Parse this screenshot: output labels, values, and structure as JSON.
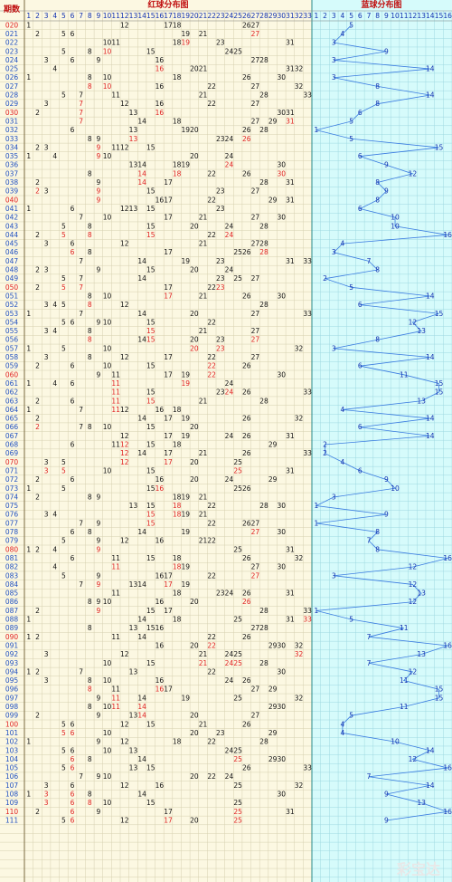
{
  "chart_data": {
    "type": "distribution",
    "period_header": "期数",
    "red_title": "红球分布图",
    "blue_title": "蓝球分布图",
    "watermark": "彩宝达",
    "red_columns": [
      1,
      2,
      3,
      4,
      5,
      6,
      7,
      8,
      9,
      10,
      11,
      12,
      13,
      14,
      15,
      16,
      17,
      18,
      19,
      20,
      21,
      22,
      23,
      24,
      25,
      26,
      27,
      28,
      29,
      30,
      31,
      32,
      33
    ],
    "blue_columns": [
      1,
      2,
      3,
      4,
      5,
      6,
      7,
      8,
      9,
      10,
      11,
      12,
      13,
      14,
      15,
      16
    ],
    "blue_color": "#3a7be0",
    "repeat_color": "#e02020",
    "rows": [
      {
        "period": "020",
        "red": [
          1,
          12,
          17,
          18,
          26,
          27
        ],
        "blue": 5
      },
      {
        "period": "021",
        "red": [
          2,
          5,
          6,
          19,
          21,
          27
        ],
        "blue": 4
      },
      {
        "period": "022",
        "red": [
          10,
          11,
          18,
          19,
          23,
          31
        ],
        "blue": 3
      },
      {
        "period": "023",
        "red": [
          5,
          8,
          10,
          15,
          24,
          25
        ],
        "blue": 9
      },
      {
        "period": "024",
        "red": [
          3,
          6,
          9,
          16,
          27,
          28
        ],
        "blue": 3
      },
      {
        "period": "025",
        "red": [
          4,
          16,
          20,
          21,
          31,
          32
        ],
        "blue": 14
      },
      {
        "period": "026",
        "red": [
          1,
          8,
          10,
          18,
          26,
          30
        ],
        "blue": 3
      },
      {
        "period": "027",
        "red": [
          8,
          10,
          16,
          22,
          27,
          32
        ],
        "blue": 8
      },
      {
        "period": "028",
        "red": [
          5,
          7,
          11,
          21,
          28,
          33
        ],
        "blue": 14
      },
      {
        "period": "029",
        "red": [
          3,
          7,
          12,
          16,
          22,
          27
        ],
        "blue": 8
      },
      {
        "period": "030",
        "red": [
          2,
          7,
          13,
          16,
          30,
          31
        ],
        "blue": 6
      },
      {
        "period": "031",
        "red": [
          7,
          14,
          18,
          27,
          29,
          31
        ],
        "blue": 5
      },
      {
        "period": "032",
        "red": [
          6,
          13,
          19,
          20,
          26,
          28
        ],
        "blue": 1
      },
      {
        "period": "033",
        "red": [
          8,
          9,
          13,
          23,
          24,
          26
        ],
        "blue": 5
      },
      {
        "period": "034",
        "red": [
          2,
          3,
          9,
          11,
          12,
          15
        ],
        "blue": 15
      },
      {
        "period": "035",
        "red": [
          1,
          4,
          9,
          10,
          20,
          24
        ],
        "blue": 6
      },
      {
        "period": "036",
        "red": [
          13,
          14,
          18,
          19,
          24,
          30
        ],
        "blue": 9
      },
      {
        "period": "037",
        "red": [
          8,
          14,
          18,
          22,
          26,
          30
        ],
        "blue": 12
      },
      {
        "period": "038",
        "red": [
          2,
          9,
          14,
          17,
          28,
          31
        ],
        "blue": 8
      },
      {
        "period": "039",
        "red": [
          2,
          3,
          9,
          15,
          23,
          27
        ],
        "blue": 9
      },
      {
        "period": "040",
        "red": [
          9,
          16,
          17,
          22,
          29,
          31
        ],
        "blue": 8
      },
      {
        "period": "041",
        "red": [
          1,
          6,
          12,
          13,
          15,
          23
        ],
        "blue": 6
      },
      {
        "period": "042",
        "red": [
          7,
          10,
          17,
          21,
          27,
          30
        ],
        "blue": 10
      },
      {
        "period": "043",
        "red": [
          5,
          8,
          15,
          20,
          24,
          28
        ],
        "blue": 10
      },
      {
        "period": "044",
        "red": [
          2,
          5,
          8,
          15,
          22,
          24
        ],
        "blue": 16
      },
      {
        "period": "045",
        "red": [
          3,
          6,
          12,
          21,
          27,
          28
        ],
        "blue": 4
      },
      {
        "period": "046",
        "red": [
          6,
          8,
          17,
          25,
          26,
          28
        ],
        "blue": 3
      },
      {
        "period": "047",
        "red": [
          7,
          14,
          19,
          23,
          31,
          33
        ],
        "blue": 7
      },
      {
        "period": "048",
        "red": [
          2,
          3,
          9,
          15,
          20,
          24
        ],
        "blue": 8
      },
      {
        "period": "049",
        "red": [
          5,
          7,
          14,
          23,
          25,
          27
        ],
        "blue": 2
      },
      {
        "period": "050",
        "red": [
          2,
          5,
          7,
          17,
          22,
          23
        ],
        "blue": 5
      },
      {
        "period": "051",
        "red": [
          8,
          10,
          17,
          21,
          26,
          30
        ],
        "blue": 14
      },
      {
        "period": "052",
        "red": [
          3,
          4,
          5,
          8,
          12,
          28
        ],
        "blue": 6
      },
      {
        "period": "053",
        "red": [
          1,
          7,
          14,
          20,
          27,
          33
        ],
        "blue": 15
      },
      {
        "period": "054",
        "red": [
          5,
          6,
          9,
          10,
          15,
          22
        ],
        "blue": 12
      },
      {
        "period": "055",
        "red": [
          3,
          4,
          8,
          15,
          21,
          27
        ],
        "blue": 13
      },
      {
        "period": "056",
        "red": [
          8,
          14,
          15,
          20,
          23,
          27
        ],
        "blue": 8
      },
      {
        "period": "057",
        "red": [
          1,
          5,
          10,
          20,
          23,
          32
        ],
        "blue": 3
      },
      {
        "period": "058",
        "red": [
          3,
          8,
          12,
          17,
          22,
          27
        ],
        "blue": 14
      },
      {
        "period": "059",
        "red": [
          2,
          6,
          10,
          15,
          22,
          26
        ],
        "blue": 6
      },
      {
        "period": "060",
        "red": [
          9,
          11,
          17,
          19,
          22,
          30
        ],
        "blue": 11
      },
      {
        "period": "061",
        "red": [
          1,
          4,
          6,
          11,
          19,
          24
        ],
        "blue": 15
      },
      {
        "period": "062",
        "red": [
          11,
          15,
          23,
          24,
          26,
          33
        ],
        "blue": 15
      },
      {
        "period": "063",
        "red": [
          2,
          6,
          11,
          15,
          21,
          28
        ],
        "blue": 13
      },
      {
        "period": "064",
        "red": [
          1,
          7,
          11,
          12,
          16,
          18
        ],
        "blue": 4
      },
      {
        "period": "065",
        "red": [
          2,
          14,
          17,
          19,
          26,
          32
        ],
        "blue": 14
      },
      {
        "period": "066",
        "red": [
          2,
          7,
          8,
          10,
          15,
          20
        ],
        "blue": 6
      },
      {
        "period": "067",
        "red": [
          12,
          17,
          19,
          24,
          26,
          31
        ],
        "blue": 14
      },
      {
        "period": "068",
        "red": [
          6,
          11,
          12,
          15,
          18,
          29
        ],
        "blue": 2
      },
      {
        "period": "069",
        "red": [
          12,
          14,
          17,
          21,
          26,
          33
        ],
        "blue": 2
      },
      {
        "period": "070",
        "red": [
          3,
          5,
          12,
          17,
          20,
          25
        ],
        "blue": 4
      },
      {
        "period": "071",
        "red": [
          3,
          5,
          10,
          15,
          25,
          31
        ],
        "blue": 6
      },
      {
        "period": "072",
        "red": [
          2,
          6,
          16,
          20,
          24,
          29
        ],
        "blue": 9
      },
      {
        "period": "073",
        "red": [
          1,
          5,
          15,
          16,
          25,
          26
        ],
        "blue": 10
      },
      {
        "period": "074",
        "red": [
          2,
          8,
          9,
          18,
          19,
          21
        ],
        "blue": 3
      },
      {
        "period": "075",
        "red": [
          13,
          15,
          18,
          22,
          28,
          30
        ],
        "blue": 1
      },
      {
        "period": "076",
        "red": [
          3,
          4,
          15,
          18,
          19,
          21
        ],
        "blue": 9
      },
      {
        "period": "077",
        "red": [
          7,
          9,
          15,
          22,
          26,
          27
        ],
        "blue": 1
      },
      {
        "period": "078",
        "red": [
          6,
          8,
          14,
          19,
          27,
          30
        ],
        "blue": 8
      },
      {
        "period": "079",
        "red": [
          5,
          9,
          12,
          16,
          21,
          22
        ],
        "blue": 7
      },
      {
        "period": "080",
        "red": [
          1,
          2,
          4,
          9,
          25,
          31
        ],
        "blue": 8
      },
      {
        "period": "081",
        "red": [
          6,
          11,
          15,
          18,
          26,
          32
        ],
        "blue": 16
      },
      {
        "period": "082",
        "red": [
          4,
          11,
          18,
          19,
          27,
          30
        ],
        "blue": 12
      },
      {
        "period": "083",
        "red": [
          5,
          9,
          16,
          17,
          22,
          27
        ],
        "blue": 3
      },
      {
        "period": "084",
        "red": [
          7,
          9,
          13,
          14,
          17,
          19
        ],
        "blue": 12
      },
      {
        "period": "085",
        "red": [
          11,
          18,
          23,
          24,
          26,
          31
        ],
        "blue": 13
      },
      {
        "period": "086",
        "red": [
          8,
          9,
          10,
          16,
          20,
          26
        ],
        "blue": 12
      },
      {
        "period": "087",
        "red": [
          2,
          9,
          15,
          17,
          28,
          33
        ],
        "blue": 1
      },
      {
        "period": "088",
        "red": [
          1,
          14,
          18,
          25,
          31,
          33
        ],
        "blue": 5
      },
      {
        "period": "089",
        "red": [
          8,
          13,
          15,
          16,
          27,
          28
        ],
        "blue": 11
      },
      {
        "period": "090",
        "red": [
          1,
          2,
          11,
          14,
          22,
          26
        ],
        "blue": 7
      },
      {
        "period": "091",
        "red": [
          16,
          20,
          22,
          29,
          30,
          32
        ],
        "blue": 16
      },
      {
        "period": "092",
        "red": [
          3,
          12,
          21,
          24,
          25,
          32
        ],
        "blue": 13
      },
      {
        "period": "093",
        "red": [
          10,
          15,
          21,
          24,
          25,
          28
        ],
        "blue": 7
      },
      {
        "period": "094",
        "red": [
          1,
          2,
          7,
          13,
          22,
          30
        ],
        "blue": 12
      },
      {
        "period": "095",
        "red": [
          3,
          8,
          10,
          16,
          24,
          26
        ],
        "blue": 11
      },
      {
        "period": "096",
        "red": [
          8,
          11,
          16,
          17,
          27,
          29
        ],
        "blue": 15
      },
      {
        "period": "097",
        "red": [
          9,
          11,
          14,
          19,
          25,
          32
        ],
        "blue": 15
      },
      {
        "period": "098",
        "red": [
          8,
          10,
          11,
          14,
          29,
          30
        ],
        "blue": 11
      },
      {
        "period": "099",
        "red": [
          2,
          9,
          13,
          14,
          20,
          27
        ],
        "blue": 5
      },
      {
        "period": "100",
        "red": [
          5,
          6,
          12,
          15,
          21,
          26
        ],
        "blue": 4
      },
      {
        "period": "101",
        "red": [
          5,
          6,
          10,
          20,
          23,
          29
        ],
        "blue": 4
      },
      {
        "period": "102",
        "red": [
          1,
          9,
          12,
          18,
          22,
          28
        ],
        "blue": 10
      },
      {
        "period": "103",
        "red": [
          5,
          6,
          10,
          13,
          24,
          25
        ],
        "blue": 14
      },
      {
        "period": "104",
        "red": [
          6,
          8,
          14,
          25,
          29,
          30
        ],
        "blue": 12
      },
      {
        "period": "105",
        "red": [
          5,
          6,
          13,
          15,
          26,
          33
        ],
        "blue": 16
      },
      {
        "period": "106",
        "red": [
          7,
          9,
          10,
          20,
          22,
          24
        ],
        "blue": 7
      },
      {
        "period": "107",
        "red": [
          3,
          6,
          12,
          16,
          25,
          32
        ],
        "blue": 14
      },
      {
        "period": "108",
        "red": [
          1,
          3,
          6,
          8,
          14,
          30
        ],
        "blue": 9
      },
      {
        "period": "109",
        "red": [
          3,
          6,
          8,
          10,
          15,
          25
        ],
        "blue": 13
      },
      {
        "period": "110",
        "red": [
          2,
          6,
          9,
          17,
          25,
          31
        ],
        "blue": 16
      },
      {
        "period": "111",
        "red": [
          5,
          6,
          12,
          17,
          20,
          25
        ],
        "blue": 9
      }
    ]
  }
}
